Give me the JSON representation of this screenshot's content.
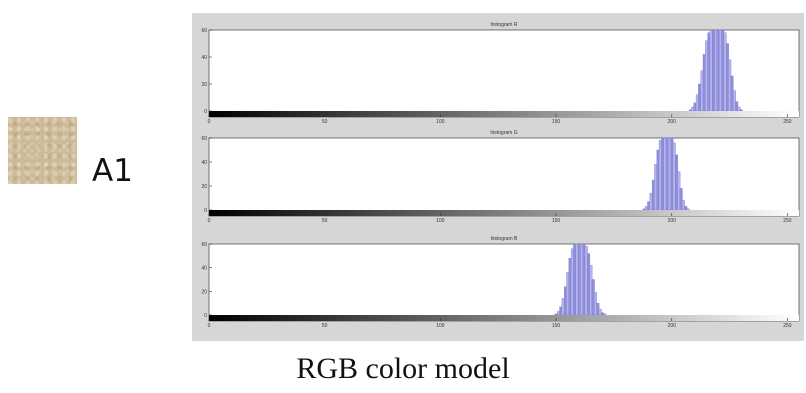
{
  "sample": {
    "label": "A1",
    "swatch_color": "#cdbb98"
  },
  "caption": "RGB color model",
  "chart_data": [
    {
      "type": "bar",
      "title": "histogram R",
      "xlim": [
        0,
        255
      ],
      "ylim": [
        0,
        60
      ],
      "xticks": [
        0,
        50,
        100,
        150,
        200,
        250
      ],
      "yticks": [
        0,
        20,
        40,
        60
      ],
      "bar_color": "#8f8fdc",
      "colorbar": "black-to-white gradient along x",
      "x": [
        208,
        209,
        210,
        211,
        212,
        213,
        214,
        215,
        216,
        217,
        218,
        219,
        220,
        221,
        222,
        223,
        224,
        225,
        226,
        227,
        228,
        229,
        230
      ],
      "values": [
        1,
        3,
        6,
        12,
        20,
        30,
        42,
        52,
        58,
        60,
        60,
        60,
        60,
        60,
        60,
        58,
        50,
        38,
        26,
        15,
        7,
        3,
        1
      ]
    },
    {
      "type": "bar",
      "title": "histogram G",
      "xlim": [
        0,
        255
      ],
      "ylim": [
        0,
        60
      ],
      "xticks": [
        0,
        50,
        100,
        150,
        200,
        250
      ],
      "yticks": [
        0,
        20,
        40,
        60
      ],
      "bar_color": "#8f8fdc",
      "colorbar": "black-to-white gradient along x",
      "x": [
        188,
        189,
        190,
        191,
        192,
        193,
        194,
        195,
        196,
        197,
        198,
        199,
        200,
        201,
        202,
        203,
        204,
        205,
        206,
        207
      ],
      "values": [
        1,
        3,
        7,
        14,
        25,
        38,
        50,
        58,
        60,
        60,
        60,
        60,
        60,
        56,
        46,
        32,
        18,
        8,
        3,
        1
      ]
    },
    {
      "type": "bar",
      "title": "histogram B",
      "xlim": [
        0,
        255
      ],
      "ylim": [
        0,
        60
      ],
      "xticks": [
        0,
        50,
        100,
        150,
        200,
        250
      ],
      "yticks": [
        0,
        20,
        40,
        60
      ],
      "bar_color": "#8f8fdc",
      "colorbar": "black-to-white gradient along x",
      "x": [
        150,
        151,
        152,
        153,
        154,
        155,
        156,
        157,
        158,
        159,
        160,
        161,
        162,
        163,
        164,
        165,
        166,
        167,
        168,
        169,
        170,
        171
      ],
      "values": [
        1,
        3,
        7,
        14,
        24,
        36,
        48,
        56,
        60,
        60,
        60,
        60,
        60,
        58,
        52,
        42,
        30,
        19,
        10,
        5,
        2,
        1
      ]
    }
  ]
}
